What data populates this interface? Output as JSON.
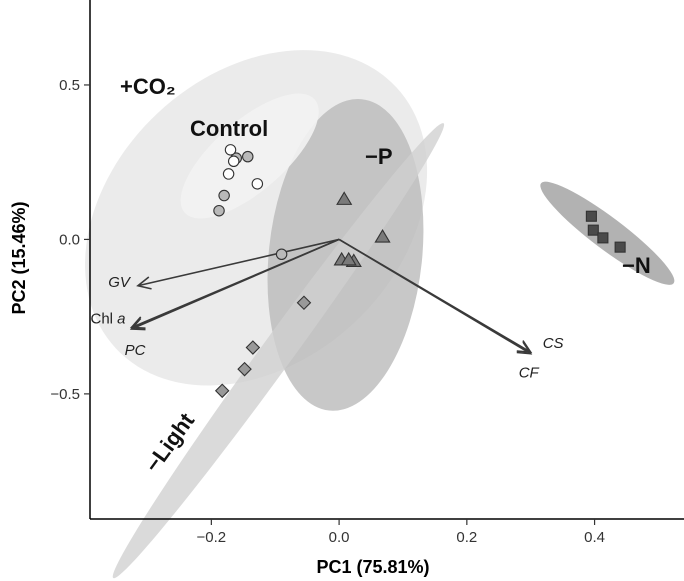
{
  "chart_data": {
    "type": "scatter",
    "subtype": "pca-biplot",
    "xlabel": "PC1 (75.81%)",
    "ylabel": "PC2 (15.46%)",
    "xlim": [
      -0.39,
      0.54
    ],
    "ylim": [
      -0.905,
      0.775
    ],
    "xticks": [
      -0.2,
      0.0,
      0.2,
      0.4
    ],
    "xtick_labels": [
      "−0.2",
      "0.0",
      "0.2",
      "0.4"
    ],
    "yticks": [
      -0.5,
      0.0,
      0.5
    ],
    "ytick_labels": [
      "−0.5",
      "0.0",
      "0.5"
    ],
    "grid": false,
    "groups": [
      {
        "name": "+CO₂",
        "label": "+CO₂",
        "marker": "circle",
        "marker_fill": "#b9b9b9",
        "ellipse_fill": "#e6e6e6",
        "ellipse": {
          "cx": -0.13,
          "cy": 0.07,
          "rx": 0.3,
          "ry": 0.225,
          "angle": -43
        },
        "points": [
          [
            -0.161,
            0.263
          ],
          [
            -0.143,
            0.268
          ],
          [
            -0.18,
            0.142
          ],
          [
            -0.188,
            0.093
          ],
          [
            -0.09,
            -0.048
          ]
        ]
      },
      {
        "name": "Control",
        "label": "Control",
        "marker": "circle",
        "marker_fill": "#ffffff",
        "ellipse_fill": "#f3f3f3",
        "ellipse": {
          "cx": -0.14,
          "cy": 0.27,
          "rx": 0.135,
          "ry": 0.055,
          "angle": -41
        },
        "points": [
          [
            -0.17,
            0.29
          ],
          [
            -0.173,
            0.212
          ],
          [
            -0.165,
            0.253
          ],
          [
            -0.128,
            0.18
          ]
        ]
      },
      {
        "name": "−P",
        "label": "−P",
        "marker": "triangle",
        "marker_fill": "#7a7a7a",
        "ellipse_fill": "#b8b8b8",
        "ellipse": {
          "cx": 0.01,
          "cy": -0.05,
          "rx": 0.245,
          "ry": 0.12,
          "angle": -84
        },
        "points": [
          [
            0.008,
            0.128
          ],
          [
            0.068,
            0.006
          ],
          [
            0.004,
            -0.068
          ],
          [
            0.023,
            -0.073
          ],
          [
            0.015,
            -0.068
          ]
        ]
      },
      {
        "name": "−Light",
        "label": "−Light",
        "marker": "diamond",
        "marker_fill": "#999999",
        "ellipse_fill": "#cfcfcf",
        "ellipse": {
          "cx": -0.095,
          "cy": -0.36,
          "rx": 0.44,
          "ry": 0.025,
          "angle": -54
        },
        "points": [
          [
            -0.055,
            -0.205
          ],
          [
            -0.135,
            -0.35
          ],
          [
            -0.148,
            -0.42
          ],
          [
            -0.183,
            -0.49
          ]
        ]
      },
      {
        "name": "−N",
        "label": "−N",
        "marker": "square",
        "marker_fill": "#4a4a4a",
        "ellipse_fill": "#9c9c9c",
        "ellipse": {
          "cx": 0.42,
          "cy": 0.02,
          "rx": 0.13,
          "ry": 0.025,
          "angle": 37
        },
        "points": [
          [
            0.395,
            0.075
          ],
          [
            0.398,
            0.03
          ],
          [
            0.413,
            0.005
          ],
          [
            0.44,
            -0.025
          ]
        ]
      }
    ],
    "loadings": [
      {
        "label": "GV",
        "x": -0.315,
        "y": -0.15
      },
      {
        "label": "Chl a",
        "x": -0.325,
        "y": -0.285
      },
      {
        "label": "PC",
        "x": -0.325,
        "y": -0.29
      },
      {
        "label": "CS",
        "x": 0.3,
        "y": -0.365
      },
      {
        "label": "CF",
        "x": 0.3,
        "y": -0.37
      }
    ]
  }
}
